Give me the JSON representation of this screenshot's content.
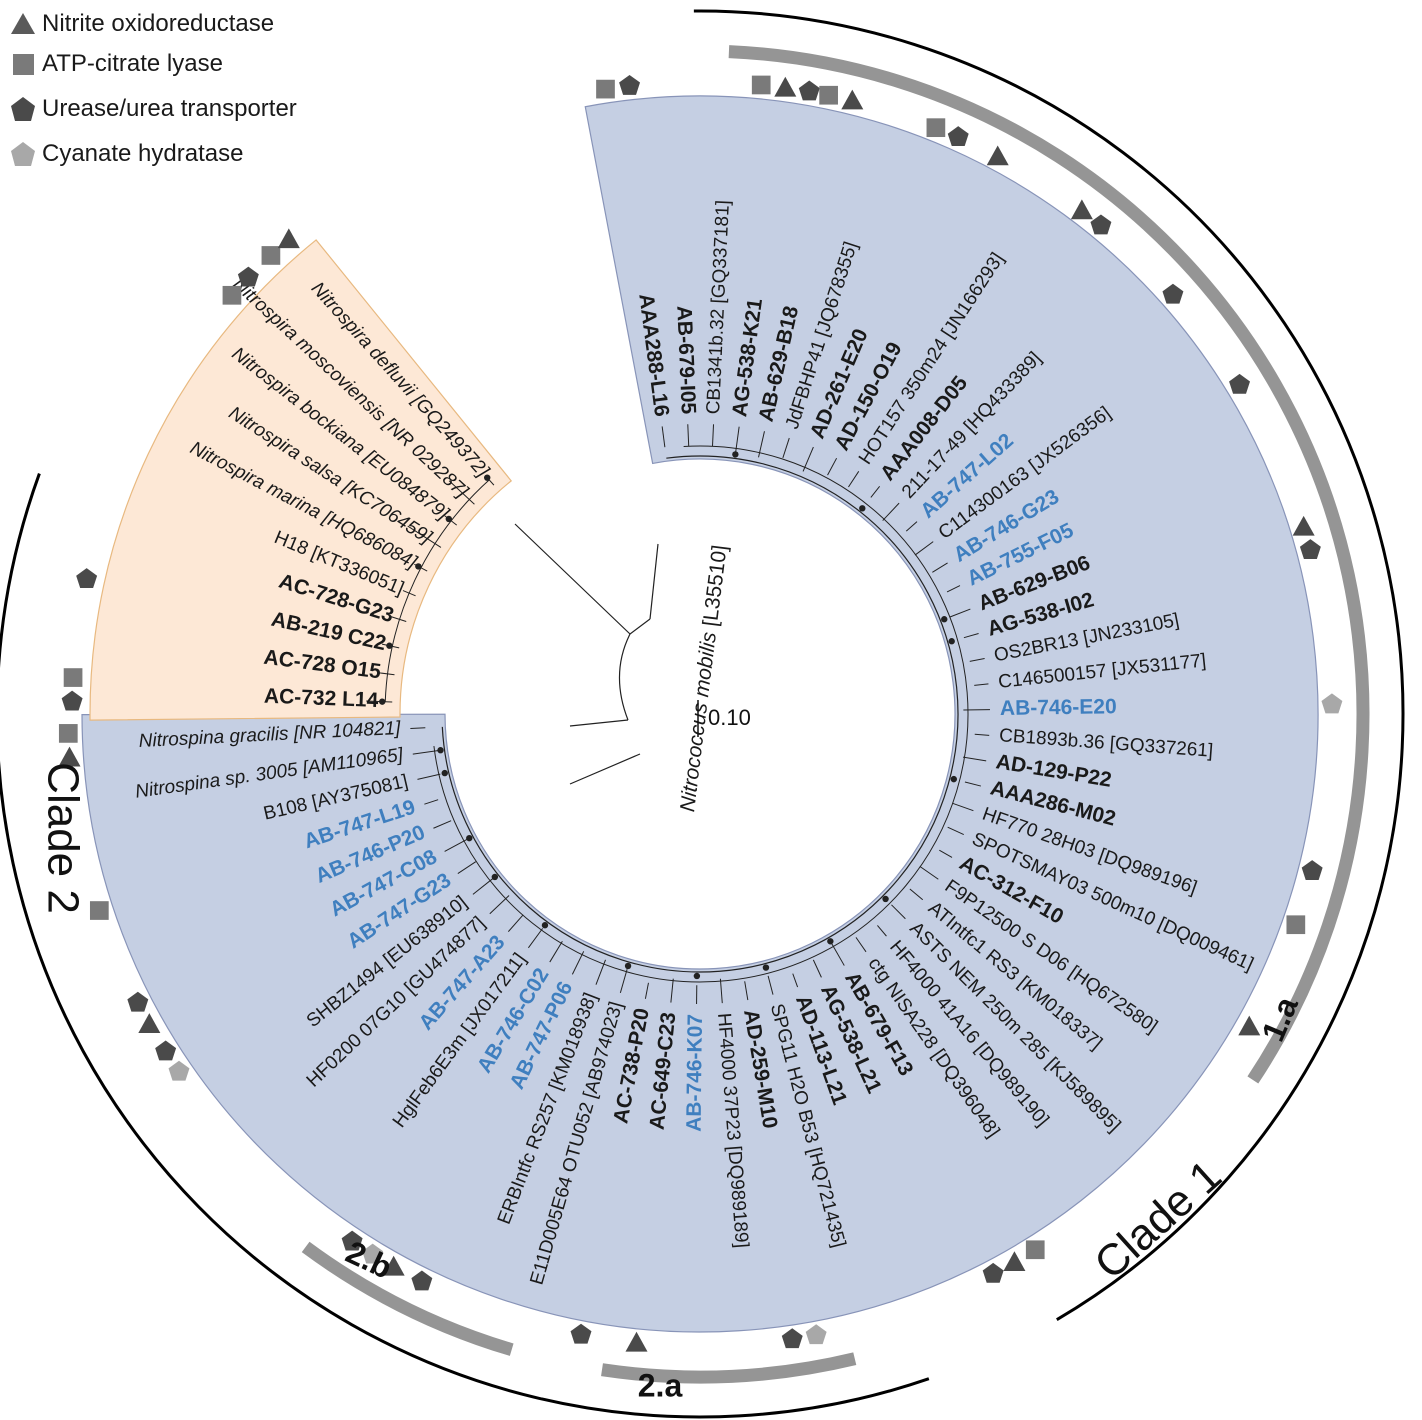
{
  "legend": [
    {
      "label": "Nitrite oxidoreductase",
      "icon": "triangle-icon",
      "color": "#5a5a5a"
    },
    {
      "label": "ATP-citrate lyase",
      "icon": "square-icon",
      "color": "#7a7a7a"
    },
    {
      "label": "Urease/urea transporter",
      "icon": "pentagon-icon",
      "color": "#4a4a4a"
    },
    {
      "label": "Cyanate hydratase",
      "icon": "pentagon-light-icon",
      "color": "#a8a8a8"
    }
  ],
  "scale_bar": "0.10",
  "colors": {
    "clade_fill": "#c5cfe3",
    "clade_stroke": "#8894b8",
    "nitrospira_fill": "#fde8d6",
    "nitrospira_stroke": "#e8b980",
    "highlight_text": "#3f7fbf",
    "bar_gray": "#959595",
    "marker_dark": "#4a4a4a",
    "marker_mid": "#7a7a7a",
    "marker_light": "#a8a8a8"
  },
  "clade_labels": {
    "clade1": "Clade 1",
    "clade2": "Clade 2",
    "sub_1a": "1.a",
    "sub_2a": "2.a",
    "sub_2b": "2.b"
  },
  "outgroup_label": {
    "name": "Nitrococcus mobilis",
    "acc": "[L35510]"
  },
  "taxa": [
    {
      "label": "AAA288-L16",
      "style": "bold",
      "markers": [
        "square",
        "pentagon"
      ]
    },
    {
      "label": "AB-679-I05",
      "style": "bold",
      "markers": []
    },
    {
      "label": "CB1341b.32 [GQ337181]",
      "style": "normal",
      "markers": []
    },
    {
      "label": "AG-538-K21",
      "style": "bold",
      "markers": [
        "square",
        "triangle",
        "pentagon"
      ]
    },
    {
      "label": "AB-629-B18",
      "style": "bold",
      "markers": [
        "square",
        "triangle"
      ]
    },
    {
      "label": "JdFBHP41 [JQ678355]",
      "style": "normal",
      "markers": []
    },
    {
      "label": "AD-261-E20",
      "style": "bold",
      "markers": [
        "square",
        "pentagon"
      ]
    },
    {
      "label": "AD-150-O19",
      "style": "bold",
      "markers": [
        "triangle"
      ]
    },
    {
      "label": "HOT157 350m24 [JN166293]",
      "style": "normal",
      "markers": []
    },
    {
      "label": "AAA008-D05",
      "style": "bold",
      "markers": [
        "triangle",
        "pentagon"
      ]
    },
    {
      "label": "211-17-49 [HQ433389]",
      "style": "normal",
      "markers": []
    },
    {
      "label": "AB-747-L02",
      "style": "blue",
      "markers": [
        "pentagon"
      ]
    },
    {
      "label": "C114300163 [JX526356]",
      "style": "normal",
      "markers": []
    },
    {
      "label": "AB-746-G23",
      "style": "blue",
      "markers": [
        "pentagon"
      ]
    },
    {
      "label": "AB-755-F05",
      "style": "blue",
      "markers": []
    },
    {
      "label": "AB-629-B06",
      "style": "bold",
      "markers": []
    },
    {
      "label": "AG-538-I02",
      "style": "bold",
      "markers": [
        "triangle",
        "pentagon"
      ]
    },
    {
      "label": "OS2BR13 [JN233105]",
      "style": "normal",
      "markers": []
    },
    {
      "label": "C146500157 [JX531177]",
      "style": "normal",
      "markers": []
    },
    {
      "label": "AB-746-E20",
      "style": "blue",
      "markers": [
        "pentagon-light"
      ]
    },
    {
      "label": "CB1893b.36 [GQ337261]",
      "style": "normal",
      "markers": []
    },
    {
      "label": "AD-129-P22",
      "style": "bold",
      "markers": []
    },
    {
      "label": "AAA286-M02",
      "style": "bold",
      "markers": [
        "pentagon"
      ]
    },
    {
      "label": "HF770 28H03 [DQ989196]",
      "style": "normal",
      "markers": [
        "square"
      ]
    },
    {
      "label": "SPOTSMAY03 500m10 [DQ009461]",
      "style": "normal",
      "markers": []
    },
    {
      "label": "AC-312-F10",
      "style": "bold",
      "markers": [
        "triangle"
      ]
    },
    {
      "label": "F9P12500 S D06 [HQ672580]",
      "style": "normal",
      "markers": []
    },
    {
      "label": "ATIntfc1 RS3 [KM018337]",
      "style": "normal",
      "markers": []
    },
    {
      "label": "ASTS NEM 250m 285 [KJ589895]",
      "style": "normal",
      "markers": []
    },
    {
      "label": "HF4000 41A16 [DQ989190]",
      "style": "normal",
      "markers": []
    },
    {
      "label": "ctg NISA228 [DQ396048]",
      "style": "normal",
      "markers": []
    },
    {
      "label": "AB-679-F13",
      "style": "bold",
      "markers": [
        "square",
        "triangle",
        "pentagon"
      ]
    },
    {
      "label": "AG-538-L21",
      "style": "bold",
      "markers": []
    },
    {
      "label": "AD-113-L21",
      "style": "bold",
      "markers": []
    },
    {
      "label": "SPG11 H2O B53 [HQ721435]",
      "style": "normal",
      "markers": []
    },
    {
      "label": "AD-259-M10",
      "style": "bold",
      "markers": [
        "pentagon-light",
        "pentagon"
      ]
    },
    {
      "label": "HF4000 37P23 [DQ989189]",
      "style": "normal",
      "markers": []
    },
    {
      "label": "AB-746-K07",
      "style": "blue",
      "markers": []
    },
    {
      "label": "AC-649-C23",
      "style": "bold",
      "markers": [
        "triangle"
      ]
    },
    {
      "label": "AC-738-P20",
      "style": "bold",
      "markers": [
        "pentagon"
      ]
    },
    {
      "label": "E11D005E64 OTU052 [AB974023]",
      "style": "normal",
      "markers": []
    },
    {
      "label": "ERBIntfc RS257 [KM018938]",
      "style": "normal",
      "markers": []
    },
    {
      "label": "AB-747-P06",
      "style": "blue",
      "markers": [
        "pentagon"
      ]
    },
    {
      "label": "AB-746-C02",
      "style": "blue",
      "markers": [
        "triangle",
        "pentagon-light",
        "pentagon"
      ]
    },
    {
      "label": "HglFeb6E3m [JX017211]",
      "style": "normal",
      "markers": []
    },
    {
      "label": "AB-747-A23",
      "style": "blue",
      "markers": []
    },
    {
      "label": "HF0200 07G10 [GU474877]",
      "style": "normal",
      "markers": []
    },
    {
      "label": "SHBZ1494 [EU638910]",
      "style": "normal",
      "markers": []
    },
    {
      "label": "AB-747-G23",
      "style": "blue",
      "markers": [
        "pentagon-light",
        "pentagon"
      ]
    },
    {
      "label": "AB-747-C08",
      "style": "blue",
      "markers": [
        "triangle",
        "pentagon"
      ]
    },
    {
      "label": "AB-746-P20",
      "style": "blue",
      "markers": []
    },
    {
      "label": "AB-747-L19",
      "style": "blue",
      "markers": [
        "square"
      ]
    },
    {
      "label": "B108 [AY375081]",
      "style": "normal",
      "markers": []
    },
    {
      "label": "Nitrospina sp. 3005 [AM110965]",
      "style": "normal",
      "markers": []
    },
    {
      "label": "Nitrospina gracilis [NR 104821]",
      "style": "normal",
      "markers": [
        "triangle",
        "square"
      ]
    },
    {
      "label": "AC-732 L14",
      "style": "bold",
      "markers": [
        "pentagon",
        "square"
      ]
    },
    {
      "label": "AC-728 O15",
      "style": "bold",
      "markers": []
    },
    {
      "label": "AB-219 C22",
      "style": "bold",
      "markers": [
        "pentagon"
      ]
    },
    {
      "label": "AC-728-G23",
      "style": "bold",
      "markers": []
    },
    {
      "label": "H18 [KT336051]",
      "style": "normal",
      "markers": []
    },
    {
      "label": "Nitrospira marina [HQ686084]",
      "style": "normal",
      "markers": []
    },
    {
      "label": "Nitrospira salsa [KC706459]",
      "style": "normal",
      "markers": []
    },
    {
      "label": "Nitrospira bockiana [EU084879]",
      "style": "normal",
      "markers": []
    },
    {
      "label": "Nitrospira moscoviensis [NR 029287]",
      "style": "normal",
      "markers": [
        "square",
        "pentagon"
      ]
    },
    {
      "label": "Nitrospira defluvii [GQ249372]",
      "style": "normal",
      "markers": [
        "square",
        "triangle"
      ]
    }
  ]
}
